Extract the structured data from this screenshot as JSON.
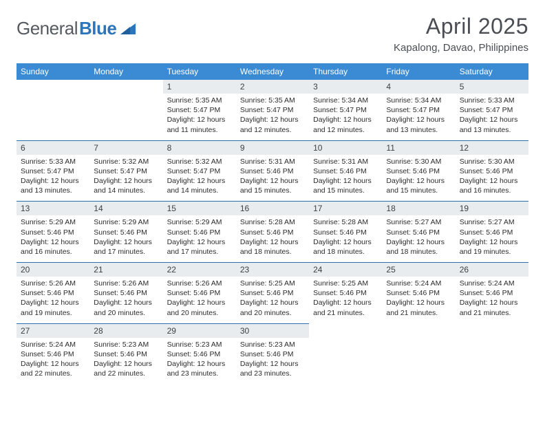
{
  "brand": {
    "word1": "General",
    "word2": "Blue"
  },
  "title": {
    "month": "April 2025",
    "location": "Kapalong, Davao, Philippines"
  },
  "colors": {
    "header_bg": "#3b8bd4",
    "header_fg": "#ffffff",
    "daynum_bg": "#e9ecef",
    "daynum_border": "#2a6fb0",
    "text": "#2b2b2b",
    "logo_gray": "#555a60",
    "logo_blue": "#2a75bb"
  },
  "fonts": {
    "base": "Arial",
    "month_size_pt": 24,
    "location_size_pt": 11,
    "header_size_pt": 9,
    "cell_size_pt": 8
  },
  "weekdays": [
    "Sunday",
    "Monday",
    "Tuesday",
    "Wednesday",
    "Thursday",
    "Friday",
    "Saturday"
  ],
  "weeks": [
    [
      null,
      null,
      {
        "d": "1",
        "sr": "5:35 AM",
        "ss": "5:47 PM",
        "dl": "12 hours and 11 minutes."
      },
      {
        "d": "2",
        "sr": "5:35 AM",
        "ss": "5:47 PM",
        "dl": "12 hours and 12 minutes."
      },
      {
        "d": "3",
        "sr": "5:34 AM",
        "ss": "5:47 PM",
        "dl": "12 hours and 12 minutes."
      },
      {
        "d": "4",
        "sr": "5:34 AM",
        "ss": "5:47 PM",
        "dl": "12 hours and 13 minutes."
      },
      {
        "d": "5",
        "sr": "5:33 AM",
        "ss": "5:47 PM",
        "dl": "12 hours and 13 minutes."
      }
    ],
    [
      {
        "d": "6",
        "sr": "5:33 AM",
        "ss": "5:47 PM",
        "dl": "12 hours and 13 minutes."
      },
      {
        "d": "7",
        "sr": "5:32 AM",
        "ss": "5:47 PM",
        "dl": "12 hours and 14 minutes."
      },
      {
        "d": "8",
        "sr": "5:32 AM",
        "ss": "5:47 PM",
        "dl": "12 hours and 14 minutes."
      },
      {
        "d": "9",
        "sr": "5:31 AM",
        "ss": "5:46 PM",
        "dl": "12 hours and 15 minutes."
      },
      {
        "d": "10",
        "sr": "5:31 AM",
        "ss": "5:46 PM",
        "dl": "12 hours and 15 minutes."
      },
      {
        "d": "11",
        "sr": "5:30 AM",
        "ss": "5:46 PM",
        "dl": "12 hours and 15 minutes."
      },
      {
        "d": "12",
        "sr": "5:30 AM",
        "ss": "5:46 PM",
        "dl": "12 hours and 16 minutes."
      }
    ],
    [
      {
        "d": "13",
        "sr": "5:29 AM",
        "ss": "5:46 PM",
        "dl": "12 hours and 16 minutes."
      },
      {
        "d": "14",
        "sr": "5:29 AM",
        "ss": "5:46 PM",
        "dl": "12 hours and 17 minutes."
      },
      {
        "d": "15",
        "sr": "5:29 AM",
        "ss": "5:46 PM",
        "dl": "12 hours and 17 minutes."
      },
      {
        "d": "16",
        "sr": "5:28 AM",
        "ss": "5:46 PM",
        "dl": "12 hours and 18 minutes."
      },
      {
        "d": "17",
        "sr": "5:28 AM",
        "ss": "5:46 PM",
        "dl": "12 hours and 18 minutes."
      },
      {
        "d": "18",
        "sr": "5:27 AM",
        "ss": "5:46 PM",
        "dl": "12 hours and 18 minutes."
      },
      {
        "d": "19",
        "sr": "5:27 AM",
        "ss": "5:46 PM",
        "dl": "12 hours and 19 minutes."
      }
    ],
    [
      {
        "d": "20",
        "sr": "5:26 AM",
        "ss": "5:46 PM",
        "dl": "12 hours and 19 minutes."
      },
      {
        "d": "21",
        "sr": "5:26 AM",
        "ss": "5:46 PM",
        "dl": "12 hours and 20 minutes."
      },
      {
        "d": "22",
        "sr": "5:26 AM",
        "ss": "5:46 PM",
        "dl": "12 hours and 20 minutes."
      },
      {
        "d": "23",
        "sr": "5:25 AM",
        "ss": "5:46 PM",
        "dl": "12 hours and 20 minutes."
      },
      {
        "d": "24",
        "sr": "5:25 AM",
        "ss": "5:46 PM",
        "dl": "12 hours and 21 minutes."
      },
      {
        "d": "25",
        "sr": "5:24 AM",
        "ss": "5:46 PM",
        "dl": "12 hours and 21 minutes."
      },
      {
        "d": "26",
        "sr": "5:24 AM",
        "ss": "5:46 PM",
        "dl": "12 hours and 21 minutes."
      }
    ],
    [
      {
        "d": "27",
        "sr": "5:24 AM",
        "ss": "5:46 PM",
        "dl": "12 hours and 22 minutes."
      },
      {
        "d": "28",
        "sr": "5:23 AM",
        "ss": "5:46 PM",
        "dl": "12 hours and 22 minutes."
      },
      {
        "d": "29",
        "sr": "5:23 AM",
        "ss": "5:46 PM",
        "dl": "12 hours and 23 minutes."
      },
      {
        "d": "30",
        "sr": "5:23 AM",
        "ss": "5:46 PM",
        "dl": "12 hours and 23 minutes."
      },
      null,
      null,
      null
    ]
  ],
  "labels": {
    "sunrise": "Sunrise:",
    "sunset": "Sunset:",
    "daylight": "Daylight:"
  }
}
